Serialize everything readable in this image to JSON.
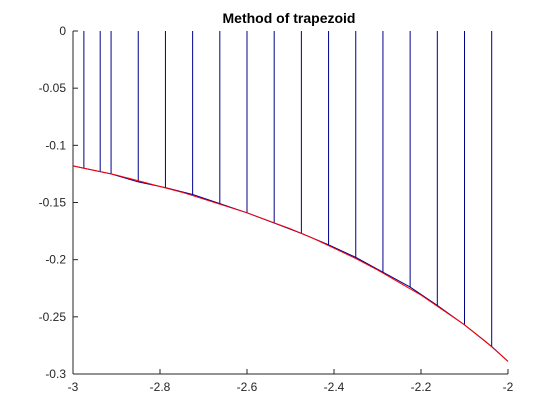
{
  "chart_data": {
    "type": "line",
    "title": "Method of trapezoid",
    "xlabel": "",
    "ylabel": "",
    "xlim": [
      -3,
      -2
    ],
    "ylim": [
      -0.3,
      0
    ],
    "xticks": [
      -3,
      -2.8,
      -2.6,
      -2.4,
      -2.2,
      -2
    ],
    "xtick_labels": [
      "-3",
      "-2.8",
      "-2.6",
      "-2.4",
      "-2.2",
      "-2"
    ],
    "yticks": [
      0,
      -0.05,
      -0.1,
      -0.15,
      -0.2,
      -0.25,
      -0.3
    ],
    "ytick_labels": [
      "0",
      "-0.05",
      "-0.1",
      "-0.15",
      "-0.2",
      "-0.25",
      "-0.3"
    ],
    "grid": false,
    "colors": {
      "curve": "#ff0000",
      "trapezoid": "#00008b",
      "axes": "#262626"
    },
    "curve": {
      "x": [
        -3,
        -2.95,
        -2.9,
        -2.85,
        -2.8,
        -2.75,
        -2.7,
        -2.65,
        -2.6,
        -2.55,
        -2.5,
        -2.45,
        -2.4,
        -2.35,
        -2.3,
        -2.25,
        -2.2,
        -2.15,
        -2.1,
        -2.05,
        -2.0
      ],
      "y": [
        -0.118,
        -0.122,
        -0.126,
        -0.131,
        -0.136,
        -0.141,
        -0.147,
        -0.153,
        -0.159,
        -0.166,
        -0.173,
        -0.181,
        -0.19,
        -0.199,
        -0.209,
        -0.22,
        -0.231,
        -0.244,
        -0.257,
        -0.272,
        -0.289
      ]
    },
    "trapezoid_nodes": {
      "x": [
        -2.975,
        -2.9375,
        -2.9125,
        -2.85,
        -2.7875,
        -2.725,
        -2.6625,
        -2.6,
        -2.5375,
        -2.475,
        -2.4125,
        -2.35,
        -2.2875,
        -2.225,
        -2.1625,
        -2.1,
        -2.0375
      ],
      "y": [
        -0.12,
        -0.123,
        -0.125,
        -0.132,
        -0.137,
        -0.143,
        -0.151,
        -0.159,
        -0.168,
        -0.177,
        -0.187,
        -0.198,
        -0.211,
        -0.224,
        -0.24,
        -0.257,
        -0.276
      ]
    }
  }
}
